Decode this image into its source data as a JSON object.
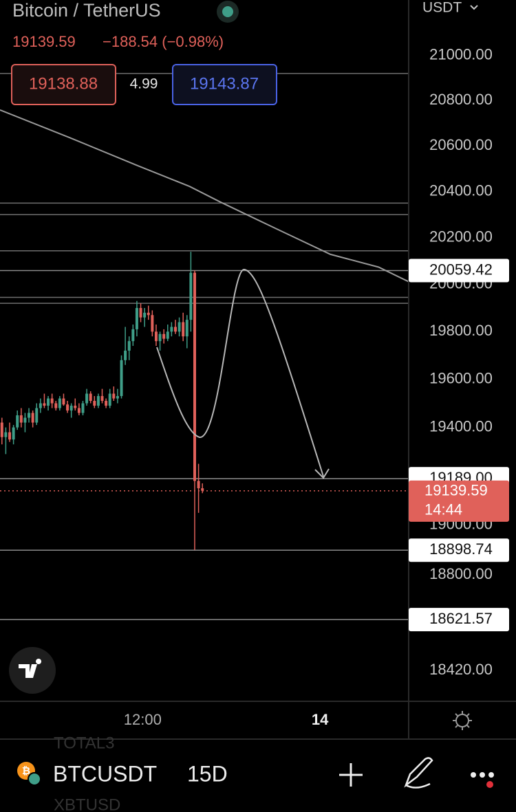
{
  "header": {
    "symbol_name": "Bitcoin / TetherUS",
    "price": "19139.59",
    "change": "−188.54 (−0.98%)",
    "bid": "19138.88",
    "spread": "4.99",
    "ask": "19143.87",
    "currency": "USDT"
  },
  "chart_data": {
    "type": "candlestick",
    "log": true,
    "up_color": "#3f9e88",
    "down_color": "#e0615a",
    "xlim": [
      -0.5,
      105.5
    ],
    "xticks": [
      {
        "value": 36.5,
        "label": "12:00"
      },
      {
        "value": 82.5,
        "label": "14"
      }
    ],
    "ylim": [
      18300,
      21250
    ],
    "yticks": [
      {
        "value": 21000,
        "label": "21000.00"
      },
      {
        "value": 20800,
        "label": "20800.00"
      },
      {
        "value": 20600,
        "label": "20600.00"
      },
      {
        "value": 20400,
        "label": "20400.00"
      },
      {
        "value": 20200,
        "label": "20200.00"
      },
      {
        "value": 20000,
        "label": "20000.00"
      },
      {
        "value": 19800,
        "label": "19800.00"
      },
      {
        "value": 19600,
        "label": "19600.00"
      },
      {
        "value": 19400,
        "label": "19400.00"
      },
      {
        "value": 19000,
        "label": "19000.00"
      },
      {
        "value": 18800,
        "label": "18800.00"
      },
      {
        "value": 18420,
        "label": "18420.00"
      }
    ],
    "x": [
      0,
      1,
      2,
      3,
      4,
      5,
      6,
      7,
      8,
      9,
      10,
      11,
      12,
      13,
      14,
      15,
      16,
      17,
      18,
      19,
      20,
      21,
      22,
      23,
      24,
      25,
      26,
      27,
      28,
      29,
      30,
      31,
      32,
      33,
      34,
      35,
      36,
      37,
      38,
      39,
      40,
      41,
      42,
      43,
      44,
      45,
      46,
      47,
      48,
      49,
      50,
      51,
      52
    ],
    "open": [
      19420,
      19360,
      19380,
      19350,
      19400,
      19450,
      19420,
      19440,
      19460,
      19420,
      19480,
      19500,
      19490,
      19520,
      19500,
      19480,
      19520,
      19495,
      19470,
      19490,
      19480,
      19460,
      19500,
      19540,
      19510,
      19490,
      19530,
      19510,
      19490,
      19540,
      19520,
      19530,
      19680,
      19720,
      19760,
      19810,
      19900,
      19860,
      19880,
      19870,
      19800,
      19760,
      19790,
      19770,
      19800,
      19820,
      19800,
      19840,
      19780,
      19850,
      20050,
      19180,
      19150
    ],
    "high": [
      19440,
      19400,
      19420,
      19410,
      19470,
      19480,
      19460,
      19480,
      19470,
      19500,
      19520,
      19540,
      19530,
      19540,
      19510,
      19530,
      19540,
      19510,
      19500,
      19520,
      19500,
      19510,
      19560,
      19550,
      19530,
      19540,
      19560,
      19520,
      19560,
      19570,
      19560,
      19700,
      19820,
      19780,
      19830,
      19930,
      19920,
      19900,
      19910,
      19890,
      19830,
      19800,
      19810,
      19830,
      19840,
      19850,
      19860,
      19880,
      19870,
      20140,
      20060,
      19250,
      19170
    ],
    "low": [
      19330,
      19290,
      19340,
      19330,
      19390,
      19400,
      19380,
      19420,
      19400,
      19410,
      19460,
      19480,
      19470,
      19480,
      19470,
      19470,
      19490,
      19460,
      19440,
      19470,
      19450,
      19450,
      19490,
      19500,
      19480,
      19480,
      19500,
      19480,
      19480,
      19510,
      19500,
      19520,
      19660,
      19680,
      19740,
      19780,
      19840,
      19820,
      19850,
      19780,
      19740,
      19720,
      19750,
      19760,
      19780,
      19790,
      19780,
      19760,
      19730,
      19800,
      18900,
      19050,
      19130
    ],
    "close": [
      19360,
      19380,
      19350,
      19400,
      19450,
      19420,
      19440,
      19460,
      19420,
      19480,
      19500,
      19490,
      19520,
      19500,
      19480,
      19520,
      19495,
      19470,
      19490,
      19480,
      19460,
      19500,
      19540,
      19510,
      19490,
      19530,
      19510,
      19490,
      19540,
      19520,
      19530,
      19680,
      19720,
      19760,
      19810,
      19900,
      19860,
      19880,
      19870,
      19800,
      19760,
      19790,
      19770,
      19800,
      19820,
      19800,
      19840,
      19780,
      19850,
      20050,
      19180,
      19150,
      19140
    ],
    "ma": {
      "color": "#9a9a9a",
      "x": [
        -0.5,
        17.4,
        35.2,
        48.7,
        56.6,
        70.9,
        85.2,
        97.7,
        105.5
      ],
      "values": [
        20758,
        20637,
        20513,
        20422,
        20355,
        20241,
        20129,
        20074,
        20012
      ]
    },
    "levels": [
      20920,
      20350,
      20300,
      20144,
      19945,
      19920
    ],
    "price_lines": [
      {
        "value": 20059.42,
        "label": "20059.42"
      },
      {
        "value": 19189,
        "label": "19189.00"
      },
      {
        "value": 18898.74,
        "label": "18898.74"
      },
      {
        "value": 18621.57,
        "label": "18621.57"
      }
    ],
    "last_price": {
      "value": 19139.59,
      "label": "19139.59"
    },
    "countdown": "14:44"
  },
  "toolbar": {
    "ticker": "BTCUSDT",
    "interval": "15D",
    "watch_above": "TOTAL3",
    "watch_below": "XBTUSD"
  }
}
